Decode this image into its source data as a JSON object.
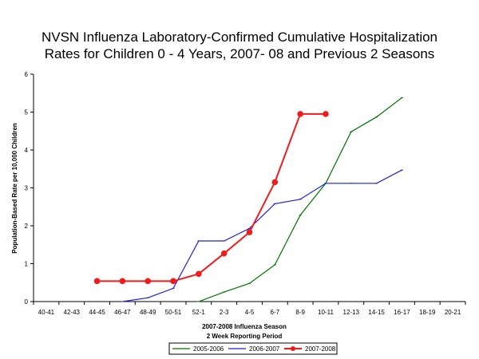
{
  "chart_data": {
    "type": "line",
    "title_lines": [
      "NVSN Influenza Laboratory-Confirmed Cumulative Hospitalization",
      "Rates for Children 0 - 4 Years, 2007- 08 and Previous 2 Seasons"
    ],
    "xlabel_lines": [
      "2007-2008 Influenza Season",
      "2 Week Reporting Period"
    ],
    "ylabel": "Population-Based Rate per 10,000 Children",
    "categories": [
      "40-41",
      "42-43",
      "44-45",
      "46-47",
      "48-49",
      "50-51",
      "52-1",
      "2-3",
      "4-5",
      "6-7",
      "8-9",
      "10-11",
      "12-13",
      "14-15",
      "16-17",
      "18-19",
      "20-21"
    ],
    "ylim": [
      0,
      6
    ],
    "yticks": [
      "0",
      "1",
      "2",
      "3",
      "4",
      "5",
      "6"
    ],
    "grid": false,
    "legend_position": "bottom",
    "series": [
      {
        "name": "2005-2006",
        "color": "#007200",
        "marker": "none",
        "values": [
          null,
          null,
          null,
          null,
          null,
          null,
          0.0,
          0.25,
          0.48,
          0.97,
          2.28,
          3.12,
          4.48,
          4.87,
          5.38,
          null,
          null
        ]
      },
      {
        "name": "2006-2007",
        "color": "#1f1fdc",
        "marker": "none",
        "values": [
          null,
          null,
          null,
          0.0,
          0.1,
          0.35,
          1.6,
          1.6,
          1.93,
          2.58,
          2.7,
          3.12,
          3.12,
          3.12,
          3.47,
          null,
          null
        ]
      },
      {
        "name": "2007-2008",
        "color": "#f01c1c",
        "marker": "circle",
        "values": [
          null,
          null,
          0.54,
          0.54,
          0.54,
          0.54,
          0.73,
          1.27,
          1.83,
          3.15,
          4.95,
          4.95,
          null,
          null,
          null,
          null,
          null
        ]
      }
    ]
  }
}
